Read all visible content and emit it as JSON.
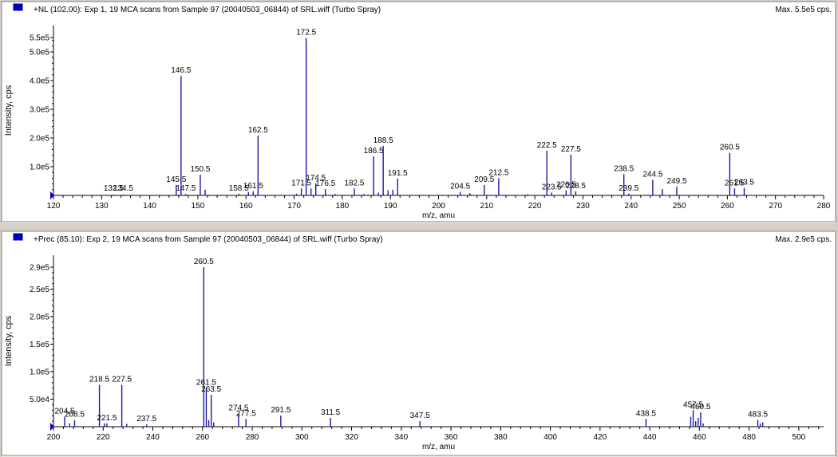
{
  "panels": [
    {
      "header": "+NL (102.00): Exp 1, 19 MCA scans from Sample 97 (20040503_06844) of SRL.wiff (Turbo Spray)",
      "max_label": "Max. 5.5e5 cps.",
      "legend_color": "#0000cc",
      "chart_data": {
        "type": "bar",
        "xlabel": "m/z, amu",
        "ylabel": "Intensity, cps",
        "xlim": [
          120,
          280
        ],
        "ylim": [
          0,
          560000
        ],
        "x_ticks": [
          120,
          130,
          140,
          150,
          160,
          170,
          180,
          190,
          200,
          210,
          220,
          230,
          240,
          250,
          260,
          270,
          280
        ],
        "y_ticks": [
          {
            "v": 100000,
            "label": "1.0e5"
          },
          {
            "v": 200000,
            "label": "2.0e5"
          },
          {
            "v": 300000,
            "label": "3.0e5"
          },
          {
            "v": 400000,
            "label": "4.0e5"
          },
          {
            "v": 500000,
            "label": "5.0e5"
          },
          {
            "v": 550000,
            "label": "5.5e5"
          }
        ],
        "peaks": [
          {
            "x": 132.5,
            "y": 3000,
            "label": "132.5"
          },
          {
            "x": 134.5,
            "y": 3000,
            "label": "134.5"
          },
          {
            "x": 145.5,
            "y": 36000,
            "label": "145.5"
          },
          {
            "x": 146.5,
            "y": 416000,
            "label": "146.5"
          },
          {
            "x": 147.5,
            "y": 5000,
            "label": "147.5"
          },
          {
            "x": 150.5,
            "y": 72000,
            "label": "150.5"
          },
          {
            "x": 151.5,
            "y": 20000
          },
          {
            "x": 158.5,
            "y": 6000,
            "label": "158.5"
          },
          {
            "x": 160.5,
            "y": 12000
          },
          {
            "x": 161.5,
            "y": 14000,
            "label": "161.5"
          },
          {
            "x": 162.5,
            "y": 208000,
            "label": "162.5"
          },
          {
            "x": 170.5,
            "y": 6000
          },
          {
            "x": 171.5,
            "y": 24000,
            "label": "171.5"
          },
          {
            "x": 172.5,
            "y": 548000,
            "label": "172.5"
          },
          {
            "x": 173.5,
            "y": 24000
          },
          {
            "x": 174.5,
            "y": 42000,
            "label": "174.5"
          },
          {
            "x": 176.5,
            "y": 22000,
            "label": "176.5"
          },
          {
            "x": 178.5,
            "y": 5000
          },
          {
            "x": 182.5,
            "y": 24000,
            "label": "182.5"
          },
          {
            "x": 184.5,
            "y": 5000
          },
          {
            "x": 186.5,
            "y": 136000,
            "label": "186.5"
          },
          {
            "x": 187.5,
            "y": 10000
          },
          {
            "x": 188.5,
            "y": 172000,
            "label": "188.5"
          },
          {
            "x": 189.5,
            "y": 18000
          },
          {
            "x": 190.5,
            "y": 20000
          },
          {
            "x": 191.5,
            "y": 58000,
            "label": "191.5"
          },
          {
            "x": 204.5,
            "y": 12000,
            "label": "204.5"
          },
          {
            "x": 206.5,
            "y": 8000
          },
          {
            "x": 209.5,
            "y": 36000,
            "label": "209.5"
          },
          {
            "x": 212.5,
            "y": 60000,
            "label": "212.5"
          },
          {
            "x": 218.5,
            "y": 4000
          },
          {
            "x": 222.5,
            "y": 156000,
            "label": "222.5"
          },
          {
            "x": 223.5,
            "y": 10000,
            "label": "223.5"
          },
          {
            "x": 226.5,
            "y": 18000,
            "label": "226.5"
          },
          {
            "x": 227.5,
            "y": 142000,
            "label": "227.5"
          },
          {
            "x": 228.5,
            "y": 14000,
            "label": "228.5"
          },
          {
            "x": 238.5,
            "y": 74000,
            "label": "238.5"
          },
          {
            "x": 239.5,
            "y": 6000,
            "label": "239.5"
          },
          {
            "x": 244.5,
            "y": 54000,
            "label": "244.5"
          },
          {
            "x": 246.5,
            "y": 22000
          },
          {
            "x": 249.5,
            "y": 30000,
            "label": "249.5"
          },
          {
            "x": 260.5,
            "y": 148000,
            "label": "260.5"
          },
          {
            "x": 261.5,
            "y": 24000,
            "label": "261.5"
          },
          {
            "x": 263.5,
            "y": 26000,
            "label": "263.5"
          }
        ]
      }
    },
    {
      "header": "+Prec (85.10): Exp 2, 19 MCA scans from Sample 97 (20040503_06844) of SRL.wiff (Turbo Spray)",
      "max_label": "Max. 2.9e5 cps.",
      "legend_color": "#0000cc",
      "chart_data": {
        "type": "bar",
        "xlabel": "m/z, amu",
        "ylabel": "Intensity, cps",
        "xlim": [
          200,
          510
        ],
        "ylim": [
          0,
          300000
        ],
        "x_ticks": [
          200,
          220,
          240,
          260,
          280,
          300,
          320,
          340,
          360,
          380,
          400,
          420,
          440,
          460,
          480,
          500
        ],
        "y_ticks": [
          {
            "v": 50000,
            "label": "5.0e4"
          },
          {
            "v": 100000,
            "label": "1.0e5"
          },
          {
            "v": 150000,
            "label": "1.5e5"
          },
          {
            "v": 200000,
            "label": "2.0e5"
          },
          {
            "v": 250000,
            "label": "2.5e5"
          },
          {
            "v": 290000,
            "label": "2.9e5"
          }
        ],
        "peaks": [
          {
            "x": 204.5,
            "y": 18000,
            "label": "204.5"
          },
          {
            "x": 206.5,
            "y": 6000
          },
          {
            "x": 208.5,
            "y": 12000,
            "label": "208.5"
          },
          {
            "x": 218.5,
            "y": 76000,
            "label": "218.5"
          },
          {
            "x": 220.5,
            "y": 6000
          },
          {
            "x": 221.5,
            "y": 6000,
            "label": "221.5"
          },
          {
            "x": 227.5,
            "y": 76000,
            "label": "227.5"
          },
          {
            "x": 229.5,
            "y": 5000
          },
          {
            "x": 237.5,
            "y": 4000,
            "label": "237.5"
          },
          {
            "x": 260.5,
            "y": 290000,
            "label": "260.5"
          },
          {
            "x": 261.5,
            "y": 70000,
            "label": "261.5"
          },
          {
            "x": 262.5,
            "y": 12000
          },
          {
            "x": 263.5,
            "y": 58000,
            "label": "263.5"
          },
          {
            "x": 264.5,
            "y": 8000
          },
          {
            "x": 274.5,
            "y": 24000,
            "label": "274.5"
          },
          {
            "x": 277.5,
            "y": 14000,
            "label": "277.5"
          },
          {
            "x": 291.5,
            "y": 20000,
            "label": "291.5"
          },
          {
            "x": 311.5,
            "y": 16000,
            "label": "311.5"
          },
          {
            "x": 347.5,
            "y": 10000,
            "label": "347.5"
          },
          {
            "x": 438.5,
            "y": 14000,
            "label": "438.5"
          },
          {
            "x": 456.5,
            "y": 18000
          },
          {
            "x": 457.5,
            "y": 30000,
            "label": "457.5"
          },
          {
            "x": 458.5,
            "y": 10000
          },
          {
            "x": 459.5,
            "y": 16000
          },
          {
            "x": 460.5,
            "y": 26000,
            "label": "460.5"
          },
          {
            "x": 461.5,
            "y": 6000
          },
          {
            "x": 483.5,
            "y": 12000,
            "label": "483.5"
          },
          {
            "x": 484.5,
            "y": 6000
          },
          {
            "x": 485.5,
            "y": 8000
          }
        ]
      }
    }
  ]
}
